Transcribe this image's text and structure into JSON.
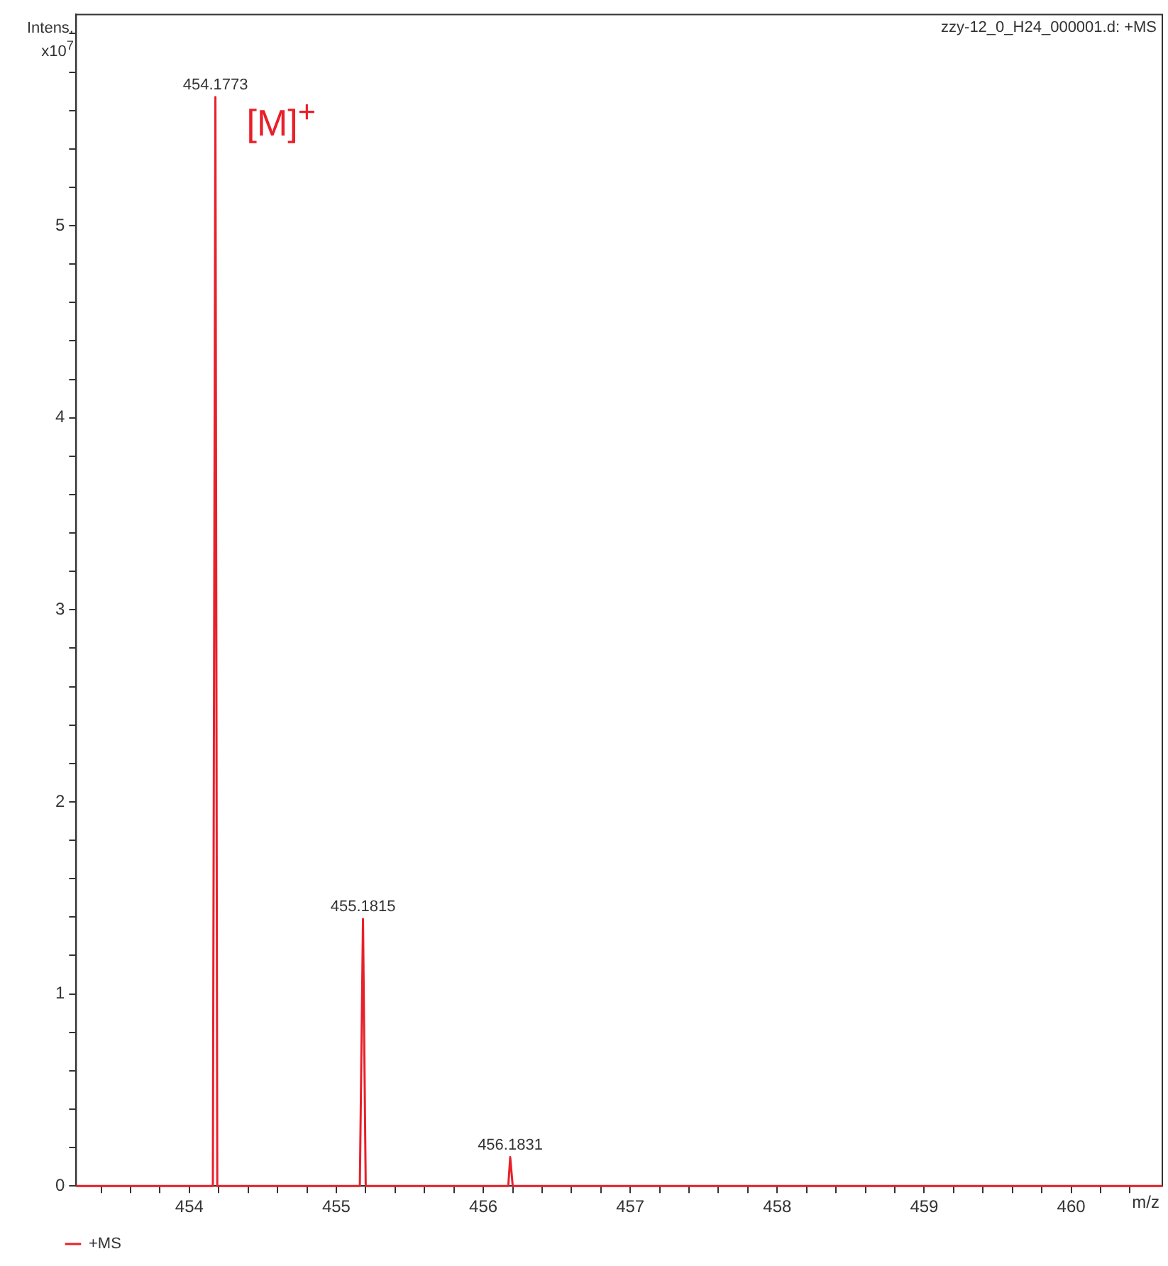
{
  "chart_data": {
    "type": "line",
    "title": "zzy-12_0_H24_000001.d: +MS",
    "xlabel": "m/z",
    "ylabel": "Intens. x10$^{7}$",
    "series": [
      {
        "name": "+MS",
        "color": "#e8202a",
        "x": [
          453.23,
          454.16,
          454.1773,
          454.19,
          455.16,
          455.1815,
          455.2,
          456.17,
          456.1831,
          456.2,
          460.62
        ],
        "values": [
          0,
          0,
          5.67,
          0,
          0,
          1.39,
          0,
          0,
          0.15,
          0,
          0
        ]
      }
    ],
    "xlim": [
      453.23,
      460.62
    ],
    "ylim": [
      0,
      6.1
    ],
    "xticks": [
      {
        "value": 453.4,
        "label": null
      },
      {
        "value": 453.6,
        "label": null
      },
      {
        "value": 453.8,
        "label": null
      },
      454,
      {
        "value": 454.2,
        "label": null
      },
      {
        "value": 454.4,
        "label": null
      },
      {
        "value": 454.6,
        "label": null
      },
      {
        "value": 454.8,
        "label": null
      },
      455,
      {
        "value": 455.2,
        "label": null
      },
      {
        "value": 455.4,
        "label": null
      },
      {
        "value": 455.6,
        "label": null
      },
      {
        "value": 455.8,
        "label": null
      },
      456,
      {
        "value": 456.2,
        "label": null
      },
      {
        "value": 456.4,
        "label": null
      },
      {
        "value": 456.6,
        "label": null
      },
      {
        "value": 456.8,
        "label": null
      },
      457,
      {
        "value": 457.2,
        "label": null
      },
      {
        "value": 457.4,
        "label": null
      },
      {
        "value": 457.6,
        "label": null
      },
      {
        "value": 457.8,
        "label": null
      },
      458,
      {
        "value": 458.2,
        "label": null
      },
      {
        "value": 458.4,
        "label": null
      },
      {
        "value": 458.6,
        "label": null
      },
      {
        "value": 458.8,
        "label": null
      },
      459,
      {
        "value": 459.2,
        "label": null
      },
      {
        "value": 459.4,
        "label": null
      },
      {
        "value": 459.6,
        "label": null
      },
      {
        "value": 459.8,
        "label": null
      },
      460,
      {
        "value": 460.2,
        "label": null
      },
      {
        "value": 460.4,
        "label": null
      }
    ],
    "yticks": [
      0,
      {
        "value": 0.2,
        "label": null
      },
      {
        "value": 0.4,
        "label": null
      },
      {
        "value": 0.6,
        "label": null
      },
      {
        "value": 0.8,
        "label": null
      },
      1,
      {
        "value": 1.2,
        "label": null
      },
      {
        "value": 1.4,
        "label": null
      },
      {
        "value": 1.6,
        "label": null
      },
      {
        "value": 1.8,
        "label": null
      },
      2,
      {
        "value": 2.2,
        "label": null
      },
      {
        "value": 2.4,
        "label": null
      },
      {
        "value": 2.6,
        "label": null
      },
      {
        "value": 2.8,
        "label": null
      },
      3,
      {
        "value": 3.2,
        "label": null
      },
      {
        "value": 3.4,
        "label": null
      },
      {
        "value": 3.6,
        "label": null
      },
      {
        "value": 3.8,
        "label": null
      },
      4,
      {
        "value": 4.2,
        "label": null
      },
      {
        "value": 4.4,
        "label": null
      },
      {
        "value": 4.6,
        "label": null
      },
      {
        "value": 4.8,
        "label": null
      },
      5,
      {
        "value": 5.2,
        "label": null
      },
      {
        "value": 5.4,
        "label": null
      },
      {
        "value": 5.6,
        "label": null
      },
      {
        "value": 5.8,
        "label": null
      },
      {
        "value": 6,
        "label": null
      }
    ],
    "annotations": [
      {
        "text": "454.1773",
        "x": 454.1773,
        "y": 5.67
      },
      {
        "text": "455.1815",
        "x": 455.1815,
        "y": 1.39
      },
      {
        "text": "456.1831",
        "x": 456.1831,
        "y": 0.15
      },
      "[M]$^{+}$"
    ],
    "grid": false,
    "legend": "bottom",
    "marker": "none",
    "line_style": "solid"
  }
}
